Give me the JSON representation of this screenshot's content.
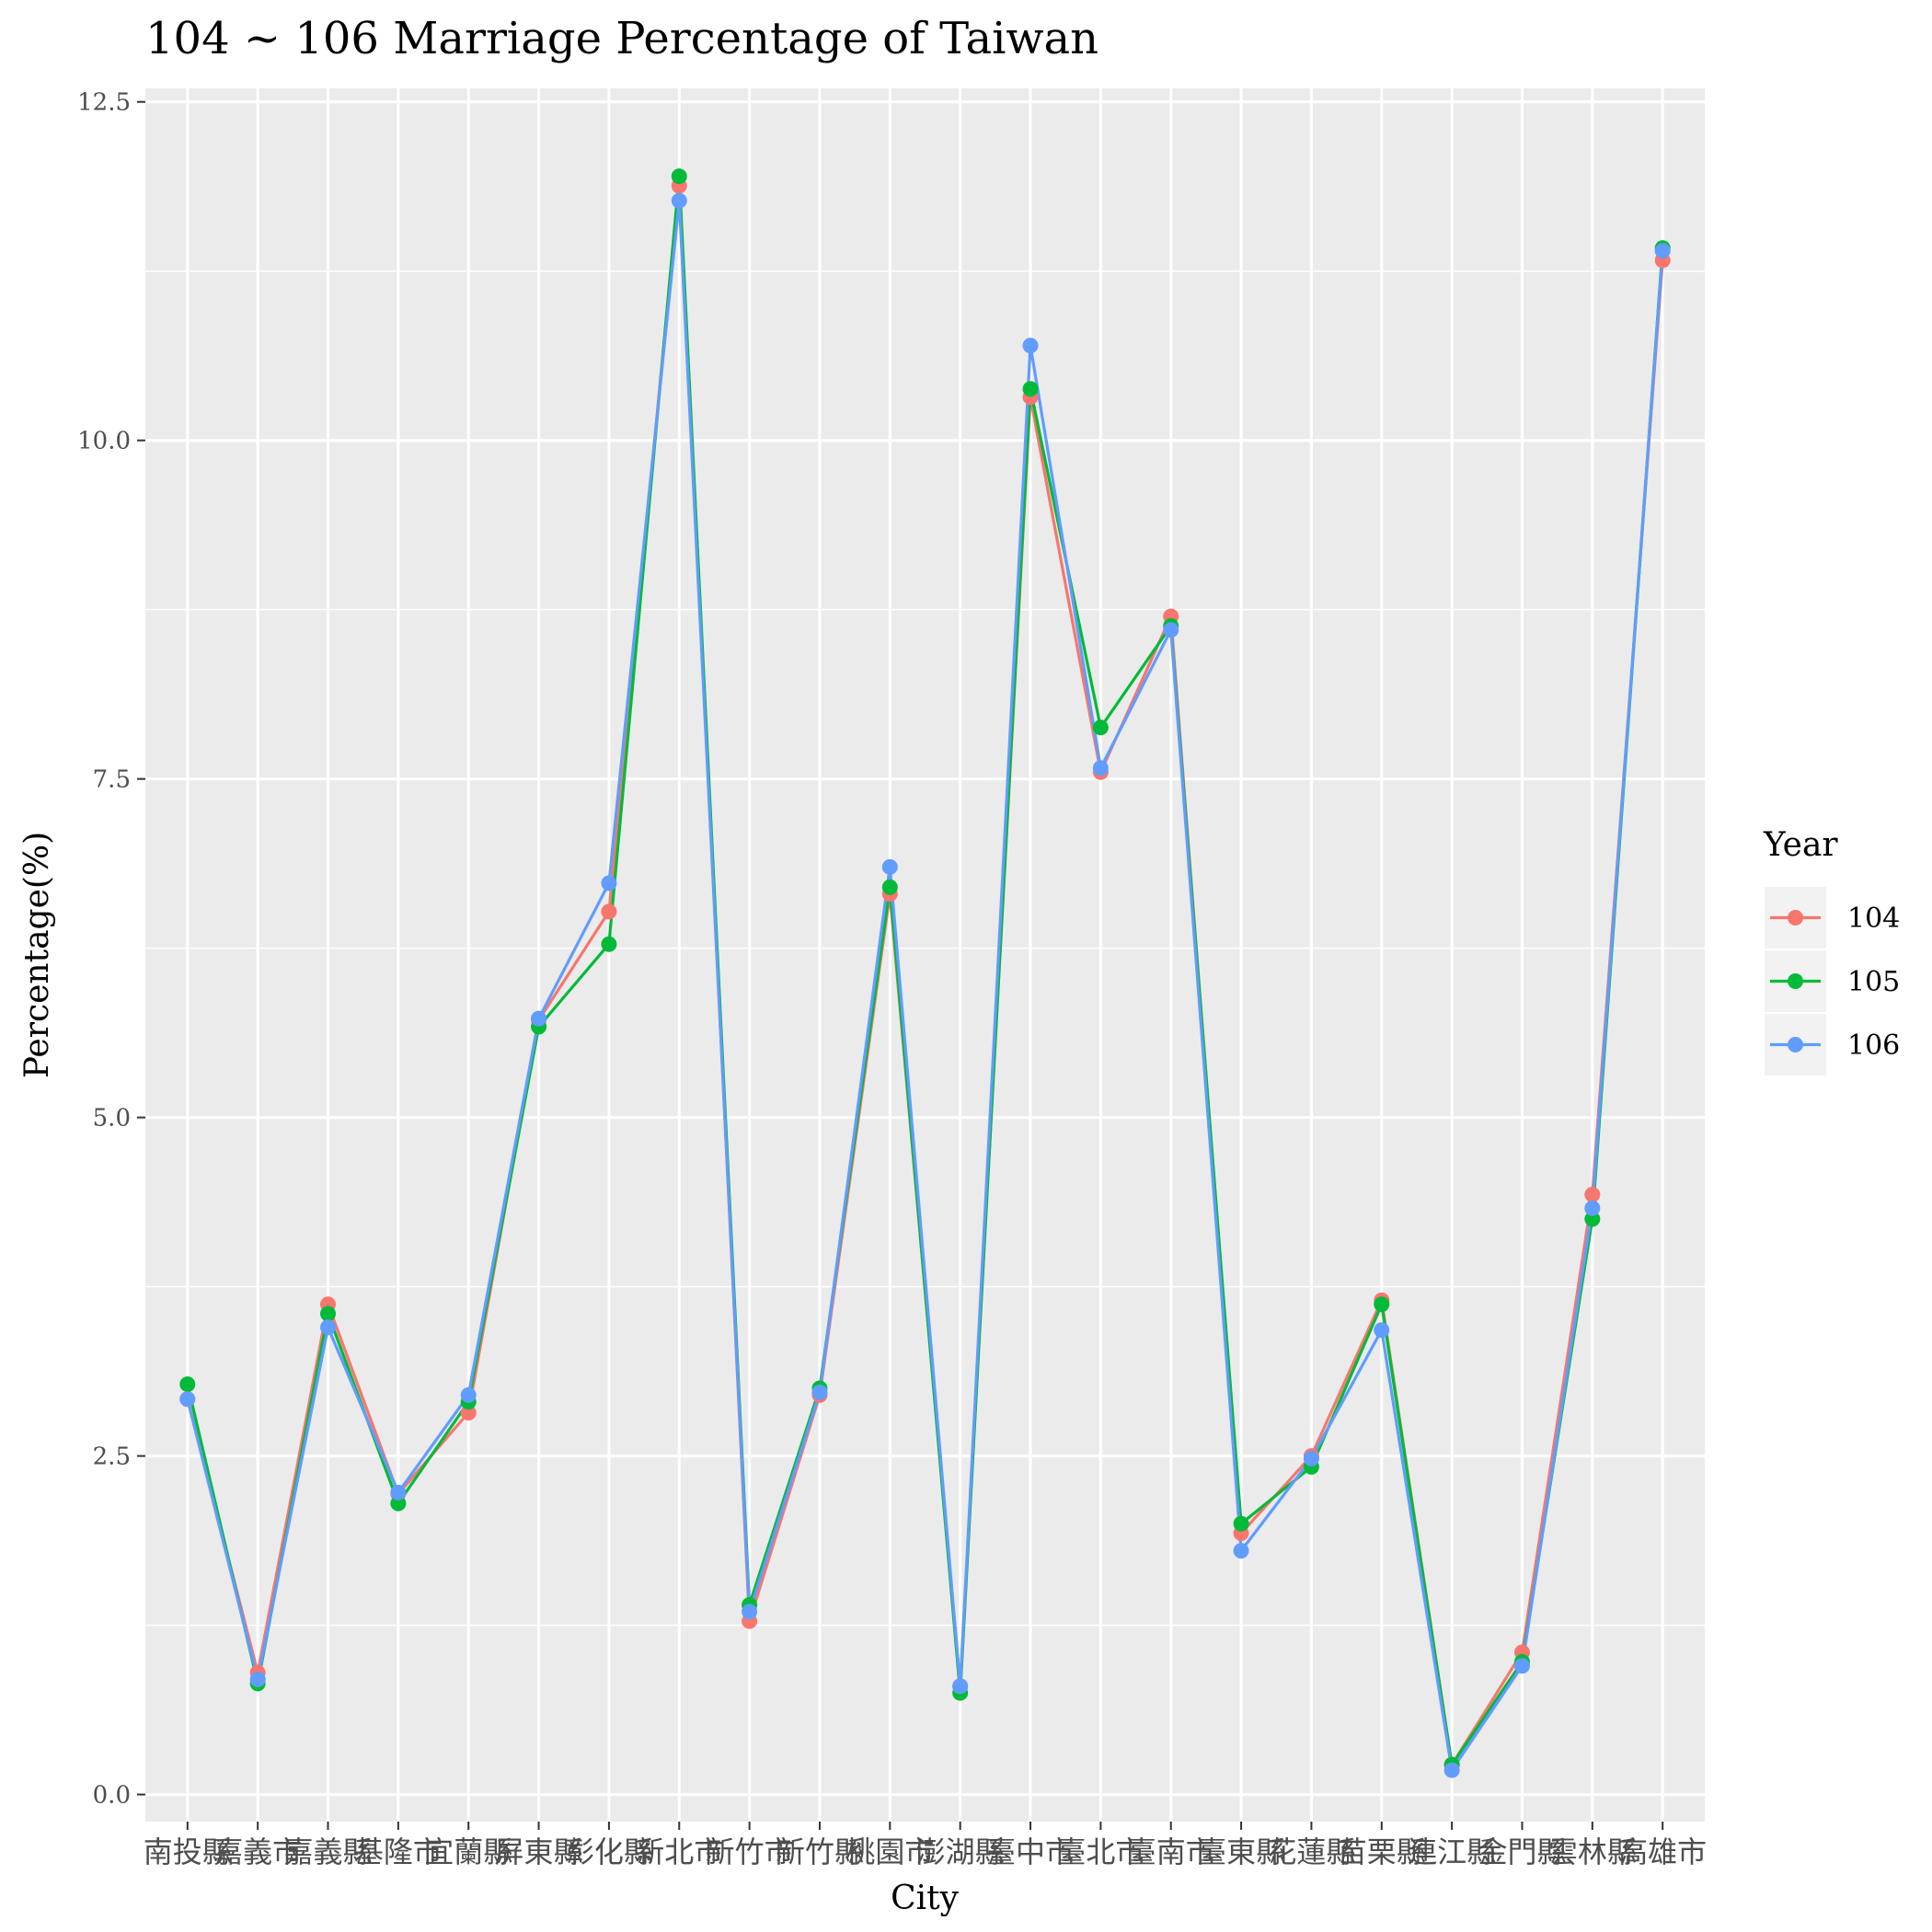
{
  "chart_data": {
    "type": "line",
    "title": "104 ~ 106 Marriage Percentage of Taiwan",
    "xlabel": "City",
    "ylabel": "Percentage(%)",
    "ylim": [
      -0.2,
      12.6
    ],
    "yticks": [
      "0.0",
      "2.5",
      "5.0",
      "7.5",
      "10.0",
      "12.5"
    ],
    "legend": {
      "title": "Year",
      "position": "right"
    },
    "categories": [
      "南投縣",
      "嘉義市",
      "嘉義縣",
      "基隆市",
      "宜蘭縣",
      "屏東縣",
      "彰化縣",
      "新北市",
      "新竹市",
      "新竹縣",
      "桃園市",
      "澎湖縣",
      "臺中市",
      "臺北市",
      "臺南市",
      "臺東縣",
      "花蓮縣",
      "苗栗縣",
      "連江縣",
      "金門縣",
      "雲林縣",
      "高雄市"
    ],
    "series": [
      {
        "name": "104",
        "color": "#F8766D",
        "values": [
          2.92,
          0.9,
          3.62,
          2.22,
          2.82,
          5.72,
          6.52,
          11.88,
          1.28,
          2.95,
          6.65,
          0.8,
          10.32,
          7.55,
          8.7,
          1.93,
          2.5,
          3.65,
          0.22,
          1.05,
          4.43,
          11.33
        ]
      },
      {
        "name": "105",
        "color": "#00BA38",
        "values": [
          3.03,
          0.82,
          3.55,
          2.15,
          2.9,
          5.67,
          6.28,
          11.95,
          1.4,
          3.0,
          6.7,
          0.75,
          10.38,
          7.88,
          8.63,
          2.0,
          2.42,
          3.62,
          0.22,
          0.98,
          4.25,
          11.42
        ]
      },
      {
        "name": "106",
        "color": "#619CFF",
        "values": [
          2.92,
          0.85,
          3.45,
          2.23,
          2.95,
          5.73,
          6.73,
          11.77,
          1.35,
          2.97,
          6.85,
          0.8,
          10.7,
          7.58,
          8.6,
          1.8,
          2.48,
          3.43,
          0.18,
          0.95,
          4.33,
          11.4
        ]
      }
    ]
  }
}
